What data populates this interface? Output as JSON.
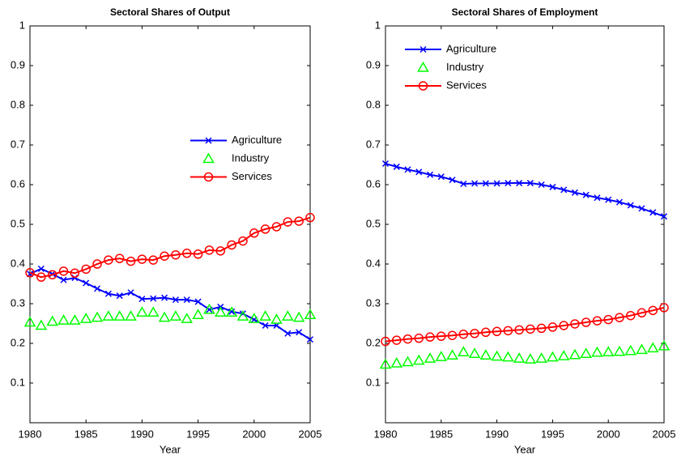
{
  "chart_data": [
    {
      "type": "line",
      "title": "Sectoral Shares of Output",
      "xlabel": "Year",
      "x": [
        1980,
        1981,
        1982,
        1983,
        1984,
        1985,
        1986,
        1987,
        1988,
        1989,
        1990,
        1991,
        1992,
        1993,
        1994,
        1995,
        1996,
        1997,
        1998,
        1999,
        2000,
        2001,
        2002,
        2003,
        2004,
        2005
      ],
      "xlim": [
        1980,
        2005
      ],
      "xticks": [
        1980,
        1985,
        1990,
        1995,
        2000,
        2005
      ],
      "ylim": [
        0,
        1
      ],
      "yticks": [
        0.1,
        0.2,
        0.3,
        0.4,
        0.5,
        0.6,
        0.7,
        0.8,
        0.9,
        1
      ],
      "legend": "east",
      "series": [
        {
          "name": "Agriculture",
          "color": "#0000ff",
          "marker": "x",
          "line": true,
          "values": [
            0.375,
            0.388,
            0.375,
            0.36,
            0.365,
            0.352,
            0.338,
            0.325,
            0.32,
            0.328,
            0.312,
            0.313,
            0.315,
            0.31,
            0.31,
            0.305,
            0.285,
            0.292,
            0.28,
            0.275,
            0.26,
            0.245,
            0.245,
            0.225,
            0.228,
            0.21
          ]
        },
        {
          "name": "Industry",
          "color": "#00ff00",
          "marker": "triangle",
          "line": false,
          "values": [
            0.253,
            0.245,
            0.255,
            0.258,
            0.258,
            0.262,
            0.265,
            0.268,
            0.268,
            0.268,
            0.278,
            0.278,
            0.265,
            0.268,
            0.262,
            0.272,
            0.285,
            0.278,
            0.278,
            0.268,
            0.262,
            0.268,
            0.26,
            0.268,
            0.265,
            0.272
          ]
        },
        {
          "name": "Services",
          "color": "#ff0000",
          "marker": "circle",
          "line": true,
          "values": [
            0.378,
            0.367,
            0.373,
            0.382,
            0.377,
            0.387,
            0.4,
            0.41,
            0.414,
            0.407,
            0.412,
            0.41,
            0.42,
            0.423,
            0.427,
            0.425,
            0.435,
            0.433,
            0.448,
            0.458,
            0.478,
            0.488,
            0.494,
            0.506,
            0.508,
            0.517
          ]
        }
      ]
    },
    {
      "type": "line",
      "title": "Sectoral Shares of Employment",
      "xlabel": "Year",
      "x": [
        1980,
        1981,
        1982,
        1983,
        1984,
        1985,
        1986,
        1987,
        1988,
        1989,
        1990,
        1991,
        1992,
        1993,
        1994,
        1995,
        1996,
        1997,
        1998,
        1999,
        2000,
        2001,
        2002,
        2003,
        2004,
        2005
      ],
      "xlim": [
        1980,
        2005
      ],
      "xticks": [
        1980,
        1985,
        1990,
        1995,
        2000,
        2005
      ],
      "ylim": [
        0,
        1
      ],
      "yticks": [
        0.1,
        0.2,
        0.3,
        0.4,
        0.5,
        0.6,
        0.7,
        0.8,
        0.9,
        1
      ],
      "legend": "northwest",
      "series": [
        {
          "name": "Agriculture",
          "color": "#0000ff",
          "marker": "x",
          "line": true,
          "values": [
            0.653,
            0.645,
            0.638,
            0.632,
            0.625,
            0.62,
            0.612,
            0.602,
            0.603,
            0.603,
            0.603,
            0.604,
            0.604,
            0.604,
            0.6,
            0.594,
            0.587,
            0.58,
            0.574,
            0.567,
            0.562,
            0.556,
            0.548,
            0.54,
            0.53,
            0.52
          ]
        },
        {
          "name": "Industry",
          "color": "#00ff00",
          "marker": "triangle",
          "line": false,
          "values": [
            0.147,
            0.15,
            0.153,
            0.157,
            0.162,
            0.166,
            0.17,
            0.178,
            0.174,
            0.17,
            0.167,
            0.165,
            0.162,
            0.16,
            0.162,
            0.165,
            0.168,
            0.171,
            0.174,
            0.177,
            0.178,
            0.179,
            0.181,
            0.184,
            0.188,
            0.193
          ]
        },
        {
          "name": "Services",
          "color": "#ff0000",
          "marker": "circle",
          "line": true,
          "values": [
            0.205,
            0.208,
            0.211,
            0.213,
            0.216,
            0.218,
            0.22,
            0.223,
            0.225,
            0.228,
            0.23,
            0.232,
            0.234,
            0.236,
            0.238,
            0.241,
            0.245,
            0.249,
            0.253,
            0.257,
            0.26,
            0.265,
            0.27,
            0.277,
            0.283,
            0.29
          ]
        }
      ]
    }
  ]
}
